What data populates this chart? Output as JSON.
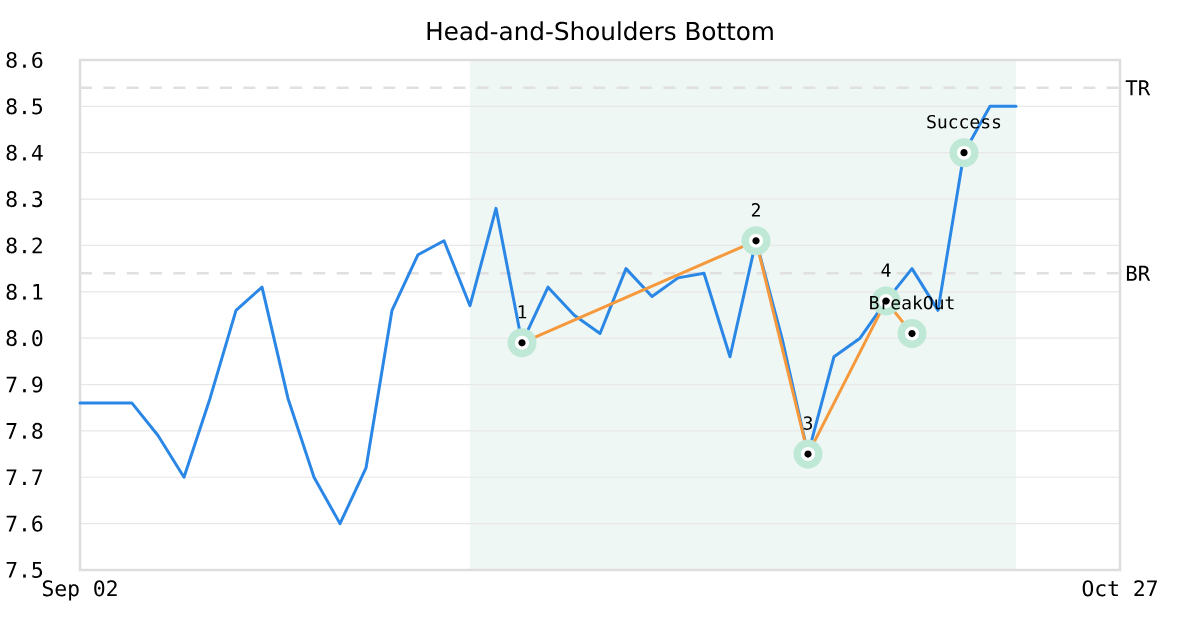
{
  "chart_data": {
    "type": "line",
    "title": "Head-and-Shoulders Bottom",
    "categories": [
      "Sep 02",
      null,
      null,
      null,
      null,
      null,
      null,
      null,
      null,
      null,
      null,
      null,
      null,
      null,
      null,
      null,
      null,
      null,
      null,
      null,
      null,
      null,
      null,
      null,
      null,
      null,
      null,
      null,
      null,
      null,
      null,
      null,
      null,
      null,
      null,
      null,
      null,
      null,
      null,
      null,
      "Oct 27"
    ],
    "ylim": [
      7.5,
      8.6
    ],
    "yticks": [
      7.5,
      7.6,
      7.7,
      7.8,
      7.9,
      {
        "value": 8.0,
        "label": "8.0"
      },
      8.1,
      8.2,
      8.3,
      8.4,
      8.5,
      8.6
    ],
    "grid": "y",
    "series": [
      {
        "color": "#2b87e6",
        "values": [
          7.86,
          7.86,
          7.86,
          7.79,
          7.7,
          7.87,
          8.06,
          8.11,
          7.87,
          7.7,
          7.6,
          7.72,
          8.06,
          8.18,
          8.21,
          8.07,
          8.28,
          7.99,
          8.11,
          8.05,
          8.01,
          8.15,
          8.09,
          8.13,
          8.14,
          7.96,
          8.21,
          8.0,
          7.75,
          7.96,
          8.0,
          8.08,
          8.15,
          8.06,
          8.4,
          8.5,
          8.5,
          null,
          null,
          null,
          null
        ]
      },
      {
        "color": "#f5993c",
        "marker": "circle",
        "values": [
          null,
          null,
          null,
          null,
          null,
          null,
          null,
          null,
          null,
          null,
          null,
          null,
          null,
          null,
          null,
          null,
          null,
          7.99,
          null,
          null,
          null,
          null,
          null,
          null,
          null,
          null,
          8.21,
          null,
          7.75,
          null,
          null,
          8.08,
          8.01,
          null,
          null,
          null,
          null,
          null,
          null,
          null,
          null
        ]
      },
      {
        "type": "scatter",
        "name": "Success",
        "color": "#bfe8d6",
        "marker": "circle",
        "values": [
          null,
          null,
          null,
          null,
          null,
          null,
          null,
          null,
          null,
          null,
          null,
          null,
          null,
          null,
          null,
          null,
          null,
          null,
          null,
          null,
          null,
          null,
          null,
          null,
          null,
          null,
          null,
          null,
          null,
          null,
          null,
          null,
          null,
          null,
          8.4,
          null,
          null,
          null,
          null,
          null,
          null
        ]
      }
    ],
    "ref_lines": [
      {
        "axis": "y",
        "value": 8.54,
        "label": "TR",
        "color": "#e0e0e0",
        "line_style": "dashed"
      },
      {
        "axis": "y",
        "value": 8.14,
        "label": "BR",
        "color": "#e0e0e0",
        "line_style": "dashed"
      }
    ],
    "annotations": [
      {
        "text": "1",
        "y": 7.99
      },
      {
        "text": "2",
        "y": 8.21
      },
      {
        "text": "3",
        "y": 7.75
      },
      {
        "text": "4",
        "y": 8.08
      },
      {
        "text": "BreakOut",
        "y": 8.01
      }
    ]
  }
}
